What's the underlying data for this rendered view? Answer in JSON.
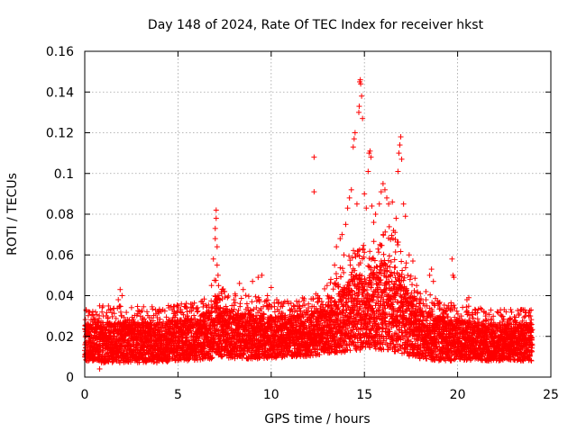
{
  "chart_data": {
    "type": "scatter",
    "title": "Day 148 of 2024, Rate Of TEC Index for receiver hkst",
    "xlabel": "GPS time / hours",
    "ylabel": "ROTI / TECUs",
    "xlim": [
      0,
      25
    ],
    "ylim": [
      0,
      0.16
    ],
    "xticks": [
      0,
      5,
      10,
      15,
      20,
      25
    ],
    "xtick_labels": [
      "0",
      "5",
      "10",
      "15",
      "20",
      "25"
    ],
    "yticks": [
      0,
      0.02,
      0.04,
      0.06,
      0.08,
      0.1,
      0.12,
      0.14,
      0.16
    ],
    "ytick_labels": [
      "0",
      "0.02",
      "0.04",
      "0.06",
      "0.08",
      "0.1",
      "0.12",
      "0.14",
      "0.16"
    ],
    "grid": true,
    "marker": "+",
    "color": "#ff0000",
    "series": [
      {
        "name": "ROTI",
        "points": [
          [
            0.1,
            0.021
          ],
          [
            0.2,
            0.026
          ],
          [
            0.3,
            0.015
          ],
          [
            0.5,
            0.028
          ],
          [
            0.8,
            0.035
          ],
          [
            0.8,
            0.004
          ],
          [
            1.0,
            0.03
          ],
          [
            1.3,
            0.033
          ],
          [
            1.5,
            0.018
          ],
          [
            1.8,
            0.038
          ],
          [
            1.9,
            0.043
          ],
          [
            2.0,
            0.04
          ],
          [
            2.2,
            0.01
          ],
          [
            2.5,
            0.027
          ],
          [
            3.0,
            0.032
          ],
          [
            3.5,
            0.022
          ],
          [
            3.8,
            0.033
          ],
          [
            4.0,
            0.008
          ],
          [
            4.5,
            0.028
          ],
          [
            4.7,
            0.033
          ],
          [
            4.8,
            0.032
          ],
          [
            5.0,
            0.026
          ],
          [
            5.5,
            0.03
          ],
          [
            6.0,
            0.022
          ],
          [
            6.2,
            0.03
          ],
          [
            6.4,
            0.026
          ],
          [
            6.8,
            0.045
          ],
          [
            6.9,
            0.058
          ],
          [
            7.0,
            0.068
          ],
          [
            7.0,
            0.073
          ],
          [
            7.05,
            0.078
          ],
          [
            7.05,
            0.082
          ],
          [
            7.1,
            0.064
          ],
          [
            7.1,
            0.055
          ],
          [
            7.15,
            0.05
          ],
          [
            7.2,
            0.04
          ],
          [
            7.5,
            0.042
          ],
          [
            7.8,
            0.032
          ],
          [
            8.0,
            0.038
          ],
          [
            8.3,
            0.046
          ],
          [
            8.5,
            0.043
          ],
          [
            8.7,
            0.036
          ],
          [
            9.0,
            0.047
          ],
          [
            9.3,
            0.049
          ],
          [
            9.5,
            0.05
          ],
          [
            9.8,
            0.04
          ],
          [
            10.0,
            0.044
          ],
          [
            10.3,
            0.038
          ],
          [
            10.5,
            0.03
          ],
          [
            11.0,
            0.033
          ],
          [
            11.2,
            0.035
          ],
          [
            11.5,
            0.037
          ],
          [
            12.0,
            0.034
          ],
          [
            12.3,
            0.108
          ],
          [
            12.3,
            0.091
          ],
          [
            12.5,
            0.04
          ],
          [
            13.0,
            0.045
          ],
          [
            13.2,
            0.048
          ],
          [
            13.4,
            0.055
          ],
          [
            13.5,
            0.064
          ],
          [
            13.7,
            0.068
          ],
          [
            13.8,
            0.07
          ],
          [
            13.9,
            0.06
          ],
          [
            14.0,
            0.075
          ],
          [
            14.1,
            0.083
          ],
          [
            14.2,
            0.088
          ],
          [
            14.3,
            0.092
          ],
          [
            14.4,
            0.113
          ],
          [
            14.45,
            0.117
          ],
          [
            14.5,
            0.12
          ],
          [
            14.6,
            0.085
          ],
          [
            14.7,
            0.13
          ],
          [
            14.72,
            0.133
          ],
          [
            14.75,
            0.145
          ],
          [
            14.78,
            0.146
          ],
          [
            14.8,
            0.144
          ],
          [
            14.85,
            0.138
          ],
          [
            14.9,
            0.127
          ],
          [
            15.0,
            0.09
          ],
          [
            15.1,
            0.083
          ],
          [
            15.2,
            0.101
          ],
          [
            15.25,
            0.11
          ],
          [
            15.3,
            0.111
          ],
          [
            15.35,
            0.108
          ],
          [
            15.4,
            0.084
          ],
          [
            15.5,
            0.076
          ],
          [
            15.6,
            0.08
          ],
          [
            15.8,
            0.085
          ],
          [
            15.9,
            0.091
          ],
          [
            16.0,
            0.095
          ],
          [
            16.1,
            0.092
          ],
          [
            16.2,
            0.088
          ],
          [
            16.3,
            0.085
          ],
          [
            16.5,
            0.086
          ],
          [
            16.7,
            0.078
          ],
          [
            16.8,
            0.101
          ],
          [
            16.85,
            0.11
          ],
          [
            16.9,
            0.114
          ],
          [
            16.95,
            0.118
          ],
          [
            17.0,
            0.107
          ],
          [
            17.1,
            0.085
          ],
          [
            17.2,
            0.079
          ],
          [
            17.4,
            0.06
          ],
          [
            17.6,
            0.057
          ],
          [
            17.8,
            0.045
          ],
          [
            18.0,
            0.041
          ],
          [
            18.3,
            0.042
          ],
          [
            18.5,
            0.05
          ],
          [
            18.6,
            0.053
          ],
          [
            18.7,
            0.047
          ],
          [
            19.0,
            0.036
          ],
          [
            19.5,
            0.034
          ],
          [
            19.7,
            0.058
          ],
          [
            19.75,
            0.05
          ],
          [
            19.8,
            0.049
          ],
          [
            20.2,
            0.03
          ],
          [
            20.5,
            0.038
          ],
          [
            20.6,
            0.039
          ],
          [
            21.0,
            0.025
          ],
          [
            21.5,
            0.03
          ],
          [
            22.0,
            0.025
          ],
          [
            22.3,
            0.033
          ],
          [
            22.6,
            0.032
          ],
          [
            23.0,
            0.027
          ],
          [
            23.3,
            0.031
          ],
          [
            23.6,
            0.033
          ],
          [
            23.9,
            0.03
          ]
        ],
        "band": {
          "hours": [
            0,
            1,
            2,
            3,
            4,
            5,
            6,
            6.8,
            7,
            7.3,
            8,
            9,
            10,
            11,
            12,
            12.8,
            13.5,
            14,
            14.5,
            15,
            15.5,
            16,
            16.5,
            17,
            17.5,
            18,
            19,
            20,
            21,
            22,
            23,
            24
          ],
          "low": [
            0.008,
            0.007,
            0.007,
            0.007,
            0.007,
            0.008,
            0.008,
            0.009,
            0.012,
            0.01,
            0.009,
            0.009,
            0.009,
            0.01,
            0.01,
            0.011,
            0.012,
            0.012,
            0.013,
            0.013,
            0.014,
            0.013,
            0.012,
            0.011,
            0.01,
            0.009,
            0.008,
            0.008,
            0.008,
            0.008,
            0.008,
            0.008
          ],
          "high": [
            0.026,
            0.027,
            0.027,
            0.027,
            0.027,
            0.028,
            0.029,
            0.034,
            0.04,
            0.035,
            0.032,
            0.031,
            0.03,
            0.03,
            0.031,
            0.034,
            0.04,
            0.046,
            0.05,
            0.05,
            0.052,
            0.058,
            0.057,
            0.048,
            0.04,
            0.034,
            0.03,
            0.028,
            0.027,
            0.026,
            0.026,
            0.026
          ]
        }
      }
    ]
  }
}
